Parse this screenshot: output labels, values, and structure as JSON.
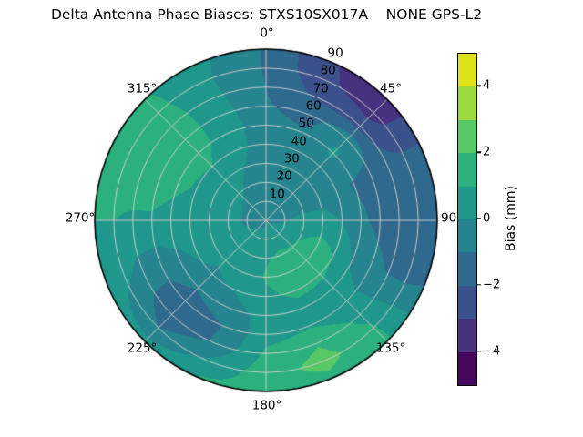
{
  "title": "Delta Antenna Phase Biases: STXS10SX017A    NONE GPS-L2",
  "polar": {
    "angle_labels": [
      {
        "text": "0°",
        "angle": 0
      },
      {
        "text": "45°",
        "angle": 45
      },
      {
        "text": "90°",
        "angle": 90
      },
      {
        "text": "135°",
        "angle": 135
      },
      {
        "text": "180°",
        "angle": 180
      },
      {
        "text": "225°",
        "angle": 225
      },
      {
        "text": "270°",
        "angle": 270
      },
      {
        "text": "315°",
        "angle": 315
      }
    ],
    "radial_labels": [
      {
        "text": "10"
      },
      {
        "text": "20"
      },
      {
        "text": "30"
      },
      {
        "text": "40"
      },
      {
        "text": "50"
      },
      {
        "text": "60"
      },
      {
        "text": "70"
      },
      {
        "text": "80"
      },
      {
        "text": "90"
      }
    ]
  },
  "colorbar": {
    "label": "Bias (mm)",
    "min": -5,
    "max": 5,
    "ticks": [
      {
        "label": "4",
        "value": 4
      },
      {
        "label": "2",
        "value": 2
      },
      {
        "label": "0",
        "value": 0
      },
      {
        "label": "−2",
        "value": -2
      },
      {
        "label": "−4",
        "value": -4
      }
    ]
  },
  "chart_data": {
    "type": "heatmap",
    "projection": "polar",
    "title": "Delta Antenna Phase Biases: STXS10SX017A    NONE GPS-L2",
    "colormap": "viridis",
    "grid": true,
    "theta_zero_location": "N",
    "theta_direction": "clockwise",
    "theta_tick_labels": [
      "0°",
      "45°",
      "90°",
      "135°",
      "180°",
      "225°",
      "270°",
      "315°"
    ],
    "r_tick_values": [
      10,
      20,
      30,
      40,
      50,
      60,
      70,
      80,
      90
    ],
    "r_label_angle_deg": 22.5,
    "levels_mm": [
      -5,
      -4,
      -3,
      -2,
      -1,
      0,
      1,
      2,
      3,
      4,
      5
    ],
    "band_colors": [
      "#46085c",
      "#46327e",
      "#3b518b",
      "#30698e",
      "#25848e",
      "#1f988b",
      "#2cb17e",
      "#58c765",
      "#9bd93c",
      "#dee318"
    ],
    "colorbar": {
      "label": "Bias (mm)",
      "ticks": [
        4,
        2,
        0,
        -2,
        -4
      ],
      "range": [
        -5,
        5
      ]
    },
    "azimuth_deg": [
      0,
      22.5,
      45,
      67.5,
      90,
      112.5,
      135,
      157.5,
      180,
      202.5,
      225,
      247.5,
      270,
      292.5,
      315,
      337.5,
      360
    ],
    "zenith_deg": [
      0,
      10,
      20,
      30,
      40,
      50,
      60,
      70,
      80,
      90
    ],
    "values_bias_mm": [
      [
        -0.3,
        -0.3,
        -0.4,
        -0.4,
        -0.5,
        -0.7,
        -0.9,
        -1.0,
        -1.1,
        -1.1
      ],
      [
        -0.3,
        -0.4,
        -0.4,
        -0.5,
        -0.6,
        -0.9,
        -1.4,
        -2.2,
        -2.8,
        -2.9
      ],
      [
        -0.3,
        -0.4,
        -0.5,
        -0.5,
        -0.4,
        0.2,
        -0.3,
        -2.4,
        -3.5,
        -3.7
      ],
      [
        -0.3,
        -0.3,
        -0.4,
        -0.5,
        -0.7,
        -1.1,
        -1.4,
        -1.6,
        -1.7,
        -1.6
      ],
      [
        -0.3,
        -0.1,
        0.4,
        0.5,
        -0.1,
        -0.8,
        -1.3,
        -1.6,
        -1.7,
        -1.6
      ],
      [
        -0.2,
        0.3,
        0.9,
        1.2,
        0.9,
        -0.2,
        -0.7,
        -1.1,
        -1.2,
        -1.0
      ],
      [
        -0.2,
        0.4,
        1.1,
        1.4,
        1.2,
        0.5,
        0.3,
        0.7,
        1.1,
        1.2
      ],
      [
        -0.1,
        0.5,
        1.2,
        1.4,
        1.2,
        0.7,
        0.9,
        1.9,
        2.4,
        1.7
      ],
      [
        -0.1,
        0.4,
        0.9,
        1.1,
        0.8,
        0.4,
        0.6,
        1.2,
        1.5,
        1.4
      ],
      [
        -0.2,
        0.2,
        0.5,
        0.4,
        0.1,
        -0.5,
        -1.0,
        -0.9,
        0.2,
        1.1
      ],
      [
        -0.2,
        0.1,
        0.3,
        0.2,
        -0.2,
        -0.9,
        -1.6,
        -1.7,
        -1.0,
        0.3
      ],
      [
        -0.2,
        0.0,
        0.2,
        0.3,
        0.2,
        -0.2,
        -0.6,
        -0.4,
        0.2,
        0.5
      ],
      [
        -0.3,
        -0.1,
        0.2,
        0.4,
        0.5,
        0.7,
        0.9,
        0.9,
        1.0,
        1.0
      ],
      [
        -0.3,
        -0.1,
        0.2,
        0.5,
        0.9,
        1.2,
        1.4,
        1.4,
        1.3,
        1.2
      ],
      [
        -0.3,
        -0.2,
        0.1,
        0.5,
        1.0,
        1.4,
        1.5,
        1.5,
        1.3,
        1.1
      ],
      [
        -0.3,
        -0.3,
        -0.2,
        0.0,
        0.3,
        0.5,
        0.4,
        0.2,
        0.1,
        0.2
      ],
      [
        -0.3,
        -0.3,
        -0.4,
        -0.4,
        -0.5,
        -0.7,
        -0.9,
        -1.0,
        -1.1,
        -1.1
      ]
    ]
  }
}
